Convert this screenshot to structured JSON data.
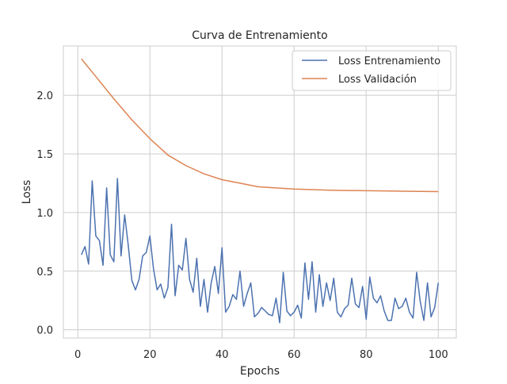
{
  "chart_data": {
    "type": "line",
    "title": "Curva de Entrenamiento",
    "xlabel": "Epochs",
    "ylabel": "Loss",
    "xlim": [
      -4,
      105
    ],
    "ylim": [
      -0.07,
      2.42
    ],
    "xticks": [
      0,
      20,
      40,
      60,
      80,
      100
    ],
    "yticks": [
      0.0,
      0.5,
      1.0,
      1.5,
      2.0
    ],
    "xtick_labels": [
      "0",
      "20",
      "40",
      "60",
      "80",
      "100"
    ],
    "ytick_labels": [
      "0.0",
      "0.5",
      "1.0",
      "1.5",
      "2.0"
    ],
    "grid": true,
    "legend_position": "top-right",
    "series": [
      {
        "name": "Loss Entrenamiento",
        "color": "#4c72b0",
        "x": [
          1,
          2,
          3,
          4,
          5,
          6,
          7,
          8,
          9,
          10,
          11,
          12,
          13,
          14,
          15,
          16,
          17,
          18,
          19,
          20,
          21,
          22,
          23,
          24,
          25,
          26,
          27,
          28,
          29,
          30,
          31,
          32,
          33,
          34,
          35,
          36,
          37,
          38,
          39,
          40,
          41,
          42,
          43,
          44,
          45,
          46,
          47,
          48,
          49,
          50,
          51,
          52,
          53,
          54,
          55,
          56,
          57,
          58,
          59,
          60,
          61,
          62,
          63,
          64,
          65,
          66,
          67,
          68,
          69,
          70,
          71,
          72,
          73,
          74,
          75,
          76,
          77,
          78,
          79,
          80,
          81,
          82,
          83,
          84,
          85,
          86,
          87,
          88,
          89,
          90,
          91,
          92,
          93,
          94,
          95,
          96,
          97,
          98,
          99,
          100
        ],
        "values": [
          0.64,
          0.71,
          0.56,
          1.27,
          0.8,
          0.76,
          0.55,
          1.21,
          0.64,
          0.58,
          1.29,
          0.63,
          0.98,
          0.72,
          0.42,
          0.34,
          0.43,
          0.63,
          0.66,
          0.8,
          0.52,
          0.34,
          0.39,
          0.27,
          0.36,
          0.9,
          0.29,
          0.55,
          0.51,
          0.78,
          0.43,
          0.32,
          0.61,
          0.2,
          0.43,
          0.15,
          0.4,
          0.54,
          0.31,
          0.7,
          0.15,
          0.2,
          0.3,
          0.26,
          0.5,
          0.2,
          0.31,
          0.4,
          0.11,
          0.14,
          0.19,
          0.16,
          0.13,
          0.12,
          0.27,
          0.06,
          0.49,
          0.16,
          0.12,
          0.15,
          0.21,
          0.1,
          0.57,
          0.26,
          0.58,
          0.15,
          0.47,
          0.2,
          0.4,
          0.25,
          0.44,
          0.15,
          0.11,
          0.18,
          0.21,
          0.44,
          0.22,
          0.19,
          0.37,
          0.09,
          0.45,
          0.27,
          0.23,
          0.29,
          0.16,
          0.08,
          0.08,
          0.27,
          0.18,
          0.2,
          0.27,
          0.15,
          0.1,
          0.49,
          0.24,
          0.08,
          0.4,
          0.11,
          0.19,
          0.4
        ]
      },
      {
        "name": "Loss Validación",
        "color": "#dd8452",
        "x": [
          1,
          5,
          10,
          15,
          20,
          25,
          30,
          35,
          40,
          45,
          50,
          55,
          60,
          65,
          70,
          75,
          80,
          85,
          90,
          95,
          100
        ],
        "values": [
          2.31,
          2.16,
          1.97,
          1.79,
          1.63,
          1.49,
          1.4,
          1.33,
          1.28,
          1.25,
          1.22,
          1.21,
          1.2,
          1.195,
          1.19,
          1.188,
          1.186,
          1.184,
          1.182,
          1.18,
          1.178
        ]
      }
    ]
  }
}
